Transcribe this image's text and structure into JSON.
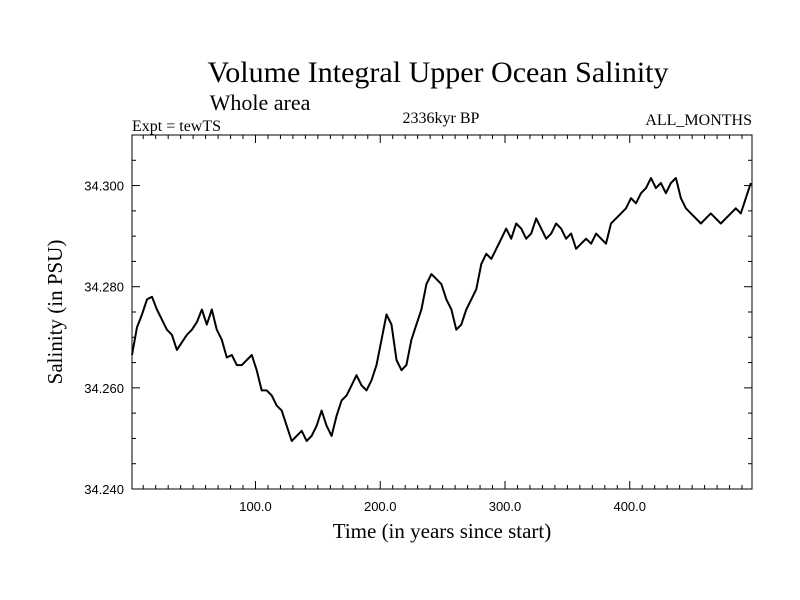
{
  "chart_data": {
    "type": "line",
    "title": "Volume Integral Upper Ocean Salinity",
    "subtitle": "Whole area",
    "left_label": "Expt = tewTS",
    "center_label": "2336kyr BP",
    "right_label": "ALL_MONTHS",
    "xlabel": "Time (in years since start)",
    "ylabel": "Salinity (in PSU)",
    "xlim": [
      1,
      498
    ],
    "ylim": [
      34.24,
      34.31
    ],
    "x_ticks": [
      100,
      200,
      300,
      400
    ],
    "x_tick_labels": [
      "100.0",
      "200.0",
      "300.0",
      "400.0"
    ],
    "y_ticks": [
      34.24,
      34.26,
      34.28,
      34.3
    ],
    "y_tick_labels": [
      "34.240",
      "34.260",
      "34.280",
      "34.300"
    ],
    "series": [
      {
        "name": "salinity",
        "color": "#000000",
        "x": [
          1,
          5,
          9,
          13,
          17,
          21,
          25,
          29,
          33,
          37,
          41,
          45,
          49,
          53,
          57,
          61,
          65,
          69,
          73,
          77,
          81,
          85,
          89,
          93,
          97,
          101,
          105,
          109,
          113,
          117,
          121,
          125,
          129,
          133,
          137,
          141,
          145,
          149,
          153,
          157,
          161,
          165,
          169,
          173,
          177,
          181,
          185,
          189,
          193,
          197,
          201,
          205,
          209,
          213,
          217,
          221,
          225,
          229,
          233,
          237,
          241,
          245,
          249,
          253,
          257,
          261,
          265,
          269,
          273,
          277,
          281,
          285,
          289,
          293,
          297,
          301,
          305,
          309,
          313,
          317,
          321,
          325,
          329,
          333,
          337,
          341,
          345,
          349,
          353,
          357,
          361,
          365,
          369,
          373,
          377,
          381,
          385,
          389,
          393,
          397,
          401,
          405,
          409,
          413,
          417,
          421,
          425,
          429,
          433,
          437,
          441,
          445,
          449,
          453,
          457,
          461,
          465,
          469,
          473,
          477,
          481,
          485,
          489,
          493,
          497
        ],
        "values": [
          34.2665,
          34.272,
          34.2745,
          34.2775,
          34.278,
          34.2755,
          34.2735,
          34.2715,
          34.2705,
          34.2675,
          34.269,
          34.2705,
          34.2715,
          34.273,
          34.2755,
          34.2725,
          34.2755,
          34.2715,
          34.2695,
          34.266,
          34.2665,
          34.2645,
          34.2645,
          34.2655,
          34.2665,
          34.2635,
          34.2595,
          34.2595,
          34.2585,
          34.2565,
          34.2555,
          34.2525,
          34.2495,
          34.2505,
          34.2515,
          34.2495,
          34.2505,
          34.2525,
          34.2555,
          34.2525,
          34.2505,
          34.2545,
          34.2575,
          34.2585,
          34.2605,
          34.2625,
          34.2605,
          34.2595,
          34.2615,
          34.2645,
          34.2695,
          34.2745,
          34.2725,
          34.2655,
          34.2635,
          34.2645,
          34.2695,
          34.2725,
          34.2755,
          34.2805,
          34.2825,
          34.2815,
          34.2805,
          34.2775,
          34.2755,
          34.2715,
          34.2725,
          34.2755,
          34.2775,
          34.2795,
          34.2845,
          34.2865,
          34.2855,
          34.2875,
          34.2895,
          34.2915,
          34.2895,
          34.2925,
          34.2915,
          34.2895,
          34.2905,
          34.2935,
          34.2915,
          34.2895,
          34.2905,
          34.2925,
          34.2915,
          34.2895,
          34.2905,
          34.2875,
          34.2885,
          34.2895,
          34.2885,
          34.2905,
          34.2895,
          34.2885,
          34.2925,
          34.2935,
          34.2945,
          34.2955,
          34.2975,
          34.2965,
          34.2985,
          34.2995,
          34.3015,
          34.2995,
          34.3005,
          34.2985,
          34.3005,
          34.3015,
          34.2975,
          34.2955,
          34.2945,
          34.2935,
          34.2925,
          34.2935,
          34.2945,
          34.2935,
          34.2925,
          34.2935,
          34.2945,
          34.2955,
          34.2945,
          34.2975,
          34.3005
        ]
      }
    ]
  }
}
